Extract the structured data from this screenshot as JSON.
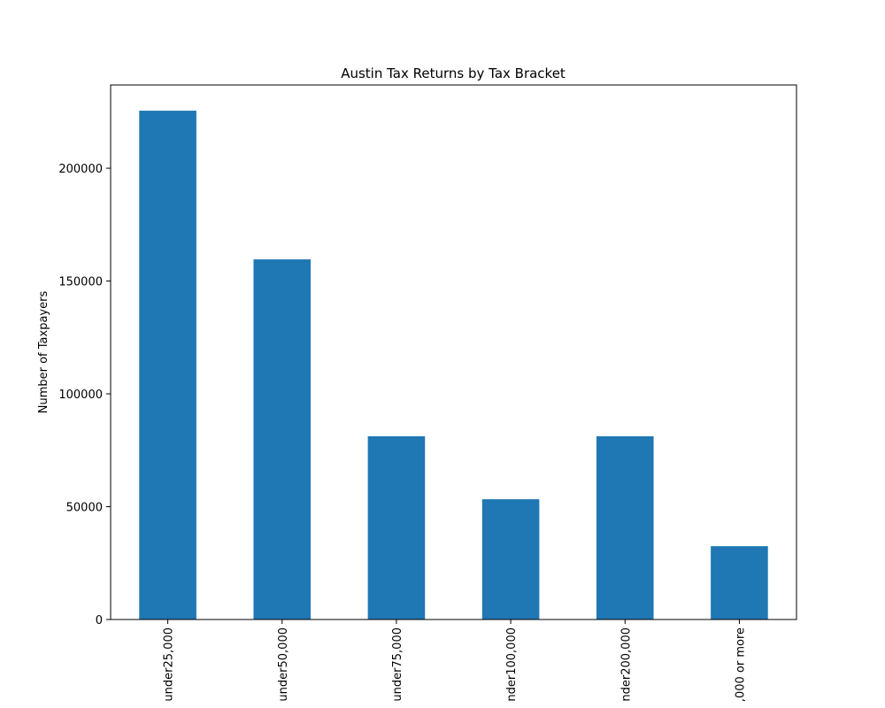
{
  "chart_data": {
    "type": "bar",
    "title": "Austin Tax Returns by Tax Bracket",
    "y_label": "Number of Taxpayers",
    "categories": [
      "under25,000",
      "under50,000",
      "under75,000",
      "nder100,000",
      "nder200,000",
      ",000 or more"
    ],
    "values": [
      225500,
      159600,
      81200,
      53300,
      81200,
      32500
    ],
    "color": "#1f77b4",
    "ylim": [
      0,
      236900
    ],
    "yticks": [
      0,
      50000,
      100000,
      150000,
      200000
    ],
    "grid": false
  }
}
